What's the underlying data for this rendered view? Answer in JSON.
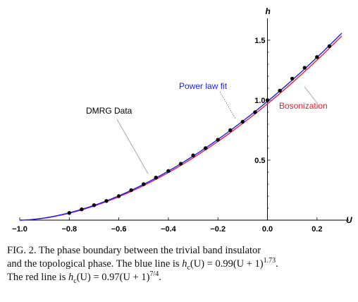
{
  "chart_data": {
    "type": "scatter",
    "xlabel": "U",
    "ylabel": "h",
    "xlim": [
      -1.0,
      0.3
    ],
    "ylim": [
      0.0,
      1.6
    ],
    "x_ticks": [
      "−1.0",
      "−0.8",
      "−0.6",
      "−0.4",
      "−0.2",
      "0.0",
      "0.2"
    ],
    "y_ticks": [
      "0.5",
      "1.0",
      "1.5"
    ],
    "series": [
      {
        "name": "DMRG Data",
        "color": "#000000",
        "marker": "circle",
        "x": [
          -0.8,
          -0.75,
          -0.7,
          -0.65,
          -0.6,
          -0.55,
          -0.5,
          -0.45,
          -0.4,
          -0.35,
          -0.3,
          -0.25,
          -0.2,
          -0.15,
          -0.1,
          -0.05,
          0.0,
          0.05,
          0.1,
          0.15,
          0.2,
          0.25
        ],
        "y": [
          0.06,
          0.09,
          0.125,
          0.16,
          0.2,
          0.25,
          0.3,
          0.355,
          0.41,
          0.47,
          0.54,
          0.6,
          0.67,
          0.75,
          0.82,
          0.9,
          1.0,
          1.08,
          1.18,
          1.27,
          1.36,
          1.45
        ]
      },
      {
        "name": "Power law fit",
        "color": "#1a1aff",
        "function": "0.99*(U+1)^1.73"
      },
      {
        "name": "Bosonization",
        "color": "#e8202a",
        "function": "0.97*(U+1)^(7/4)"
      }
    ],
    "annotations": [
      "DMRG Data",
      "Power law fit",
      "Bosonization"
    ]
  },
  "caption": {
    "line1": "FIG. 2.  The phase boundary between the trivial band insulator",
    "line2_pre": "and the topological phase. The blue line is ",
    "line2_math_h": "h",
    "line2_math_sub": "c",
    "line2_math_rest": "(U) = 0.99(U + 1)",
    "line2_math_exp": "1.73",
    "line2_end": ".",
    "line3_pre": "The red line is ",
    "line3_math_h": "h",
    "line3_math_sub": "c",
    "line3_math_rest": "(U) = 0.97(U + 1)",
    "line3_math_exp": "7/4",
    "line3_end": "."
  }
}
